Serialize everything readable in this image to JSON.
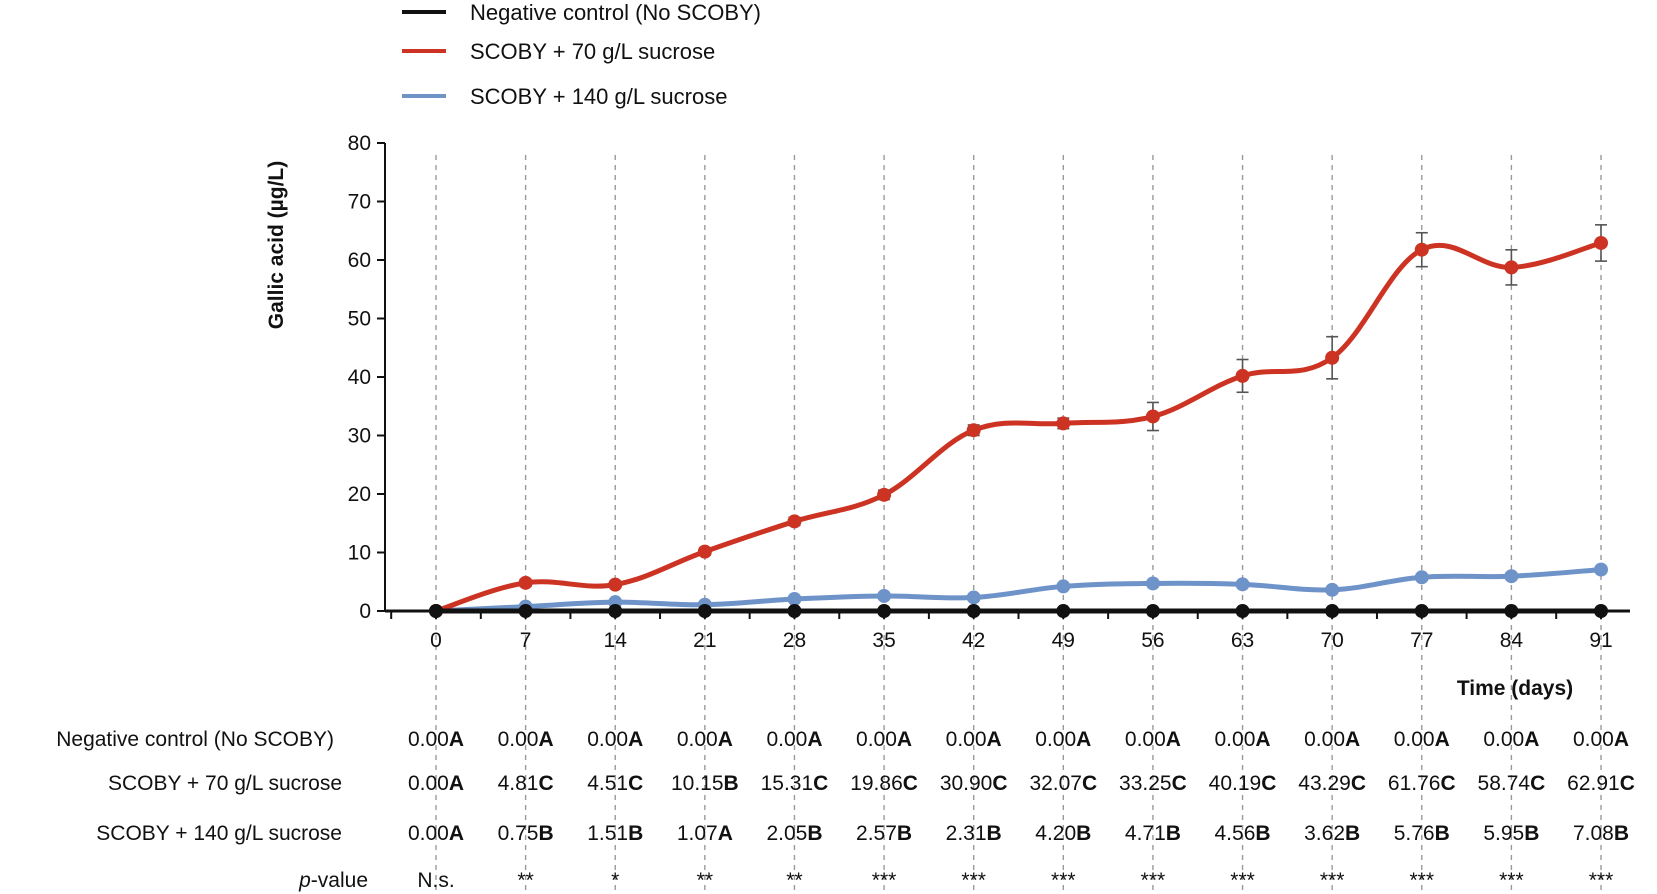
{
  "chart_data": {
    "type": "line",
    "title": "",
    "xlabel": "Time (days)",
    "ylabel": "Gallic acid (µg/L)",
    "x": [
      0,
      7,
      14,
      21,
      28,
      35,
      42,
      49,
      56,
      63,
      70,
      77,
      84,
      91
    ],
    "x_tick_labels": [
      "0",
      "7",
      "14",
      "21",
      "28",
      "35",
      "42",
      "49",
      "56",
      "63",
      "70",
      "77",
      "84",
      "91"
    ],
    "ylim": [
      0,
      80
    ],
    "y_ticks": [
      0,
      10,
      20,
      30,
      40,
      50,
      60,
      70,
      80
    ],
    "grid": "vertical dashed at each time point",
    "legend_position": "top",
    "series": [
      {
        "name": "Negative control (No SCOBY)",
        "color": "#111111",
        "values": [
          0.0,
          0.0,
          0.0,
          0.0,
          0.0,
          0.0,
          0.0,
          0.0,
          0.0,
          0.0,
          0.0,
          0.0,
          0.0,
          0.0
        ],
        "errors": [
          0,
          0,
          0,
          0,
          0,
          0,
          0,
          0,
          0,
          0,
          0,
          0,
          0,
          0
        ],
        "table_labels": [
          "0.00",
          "0.00",
          "0.00",
          "0.00",
          "0.00",
          "0.00",
          "0.00",
          "0.00",
          "0.00",
          "0.00",
          "0.00",
          "0.00",
          "0.00",
          "0.00"
        ],
        "letters": [
          "A",
          "A",
          "A",
          "A",
          "A",
          "A",
          "A",
          "A",
          "A",
          "A",
          "A",
          "A",
          "A",
          "A"
        ]
      },
      {
        "name": "SCOBY + 70 g/L sucrose",
        "color": "#cc3322",
        "values": [
          0.0,
          4.81,
          4.51,
          10.15,
          15.31,
          19.86,
          30.9,
          32.07,
          33.25,
          40.19,
          43.29,
          61.76,
          58.74,
          62.91
        ],
        "errors": [
          0,
          0.6,
          0.5,
          0.6,
          0.7,
          0.8,
          0.9,
          0.9,
          2.4,
          2.8,
          3.6,
          2.9,
          3.0,
          3.1
        ],
        "table_labels": [
          "0.00",
          "4.81",
          "4.51",
          "10.15",
          "15.31",
          "19.86",
          "30.90",
          "32.07",
          "33.25",
          "40.19",
          "43.29",
          "61.76",
          "58.74",
          "62.91"
        ],
        "letters": [
          "A",
          "C",
          "C",
          "B",
          "C",
          "C",
          "C",
          "C",
          "C",
          "C",
          "C",
          "C",
          "C",
          "C"
        ]
      },
      {
        "name": "SCOBY + 140 g/L sucrose",
        "color": "#6e93c8",
        "values": [
          0.0,
          0.75,
          1.51,
          1.07,
          2.05,
          2.57,
          2.31,
          4.2,
          4.71,
          4.56,
          3.62,
          5.76,
          5.95,
          7.08
        ],
        "errors": [
          0,
          0.3,
          0.3,
          0.3,
          0.3,
          0.3,
          0.3,
          0.4,
          0.4,
          0.4,
          0.4,
          0.5,
          0.5,
          0.5
        ],
        "table_labels": [
          "0.00",
          "0.75",
          "1.51",
          "1.07",
          "2.05",
          "2.57",
          "2.31",
          "4.20",
          "4.71",
          "4.56",
          "3.62",
          "5.76",
          "5.95",
          "7.08"
        ],
        "letters": [
          "A",
          "B",
          "B",
          "A",
          "B",
          "B",
          "B",
          "B",
          "B",
          "B",
          "B",
          "B",
          "B",
          "B"
        ]
      }
    ],
    "p_value_label_italic": "p",
    "p_value_label_rest": "-value",
    "p_values": [
      "N.s.",
      "**",
      "*",
      "**",
      "**",
      "***",
      "***",
      "***",
      "***",
      "***",
      "***",
      "***",
      "***",
      "***"
    ]
  }
}
